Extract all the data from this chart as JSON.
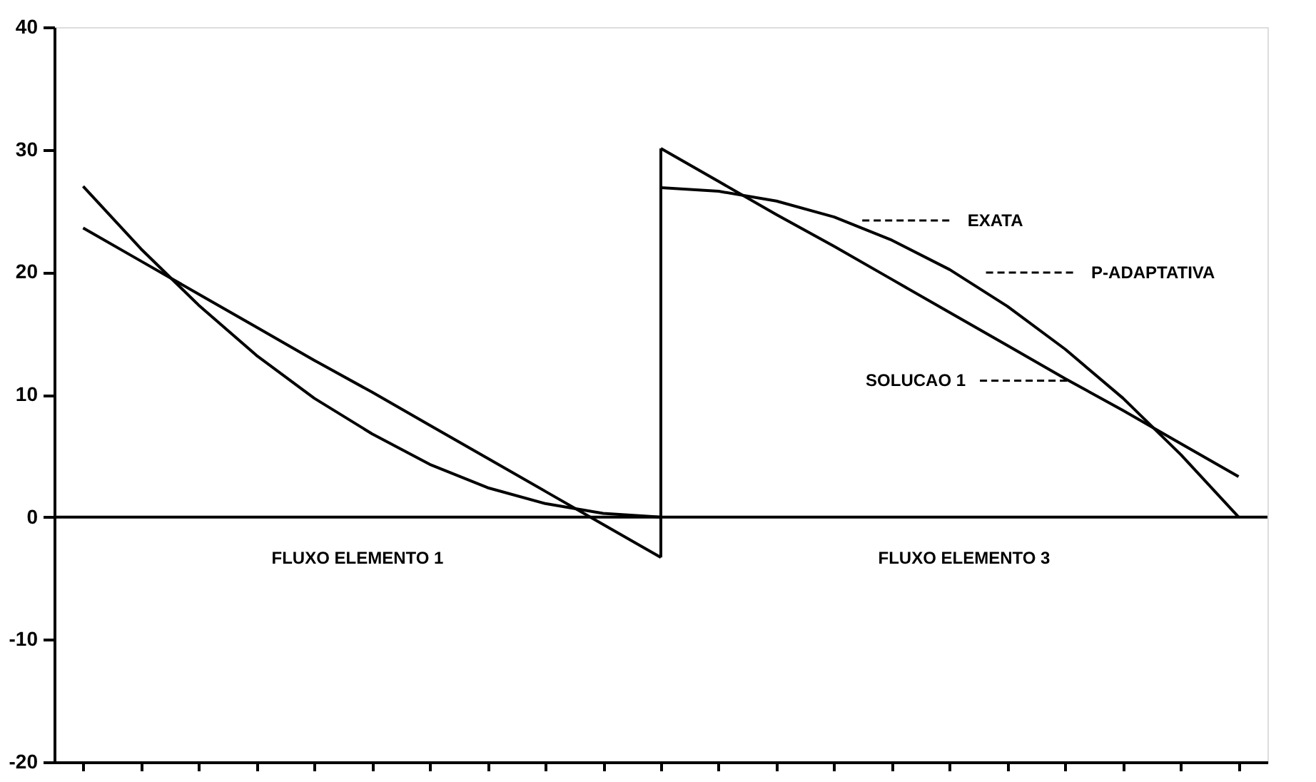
{
  "chart_data": {
    "type": "line",
    "categories": [
      null,
      null,
      null,
      null,
      null,
      null,
      null,
      null,
      null,
      null,
      null,
      null,
      null,
      null,
      null,
      null,
      null,
      null,
      null,
      null,
      null
    ],
    "series": [
      {
        "color": "#000000",
        "values": [
          27,
          21.9,
          17.3,
          13.2,
          9.7,
          6.8,
          4.3,
          2.4,
          1.1,
          0.3,
          0,
          null,
          null,
          null,
          null,
          null,
          null,
          null,
          null,
          null,
          null
        ]
      },
      {
        "color": "#000000",
        "values": [
          23.6,
          20.9,
          18.2,
          15.5,
          12.8,
          10.2,
          7.5,
          4.8,
          2.1,
          -0.6,
          -3.3,
          null,
          null,
          null,
          null,
          null,
          null,
          null,
          null,
          null,
          null
        ]
      },
      {
        "color": "#000000",
        "values": [
          null,
          null,
          null,
          null,
          null,
          null,
          null,
          null,
          null,
          null,
          26.9,
          26.6,
          25.8,
          24.5,
          22.6,
          20.2,
          17.2,
          13.7,
          9.7,
          5.1,
          0
        ]
      },
      {
        "color": "#000000",
        "values": [
          null,
          null,
          null,
          null,
          null,
          null,
          null,
          null,
          null,
          null,
          30.1,
          27.4,
          24.7,
          22.1,
          19.4,
          16.7,
          14.0,
          11.3,
          8.7,
          6.0,
          3.3
        ]
      }
    ],
    "ylim": [
      -20,
      40
    ],
    "yticks": [
      -20,
      -10,
      0,
      10,
      20,
      30,
      40
    ],
    "tick_labels": "y",
    "grid": false,
    "marker": "none",
    "line_style": "solid",
    "ref_lines": [
      {
        "axis": "y",
        "value": 0,
        "label": null
      }
    ],
    "annotations": [
      "EXATA",
      "P-ADAPTATIVA",
      "SOLUCAO 1",
      "FLUXO ELEMENTO 1",
      "FLUXO ELEMENTO 3"
    ]
  }
}
